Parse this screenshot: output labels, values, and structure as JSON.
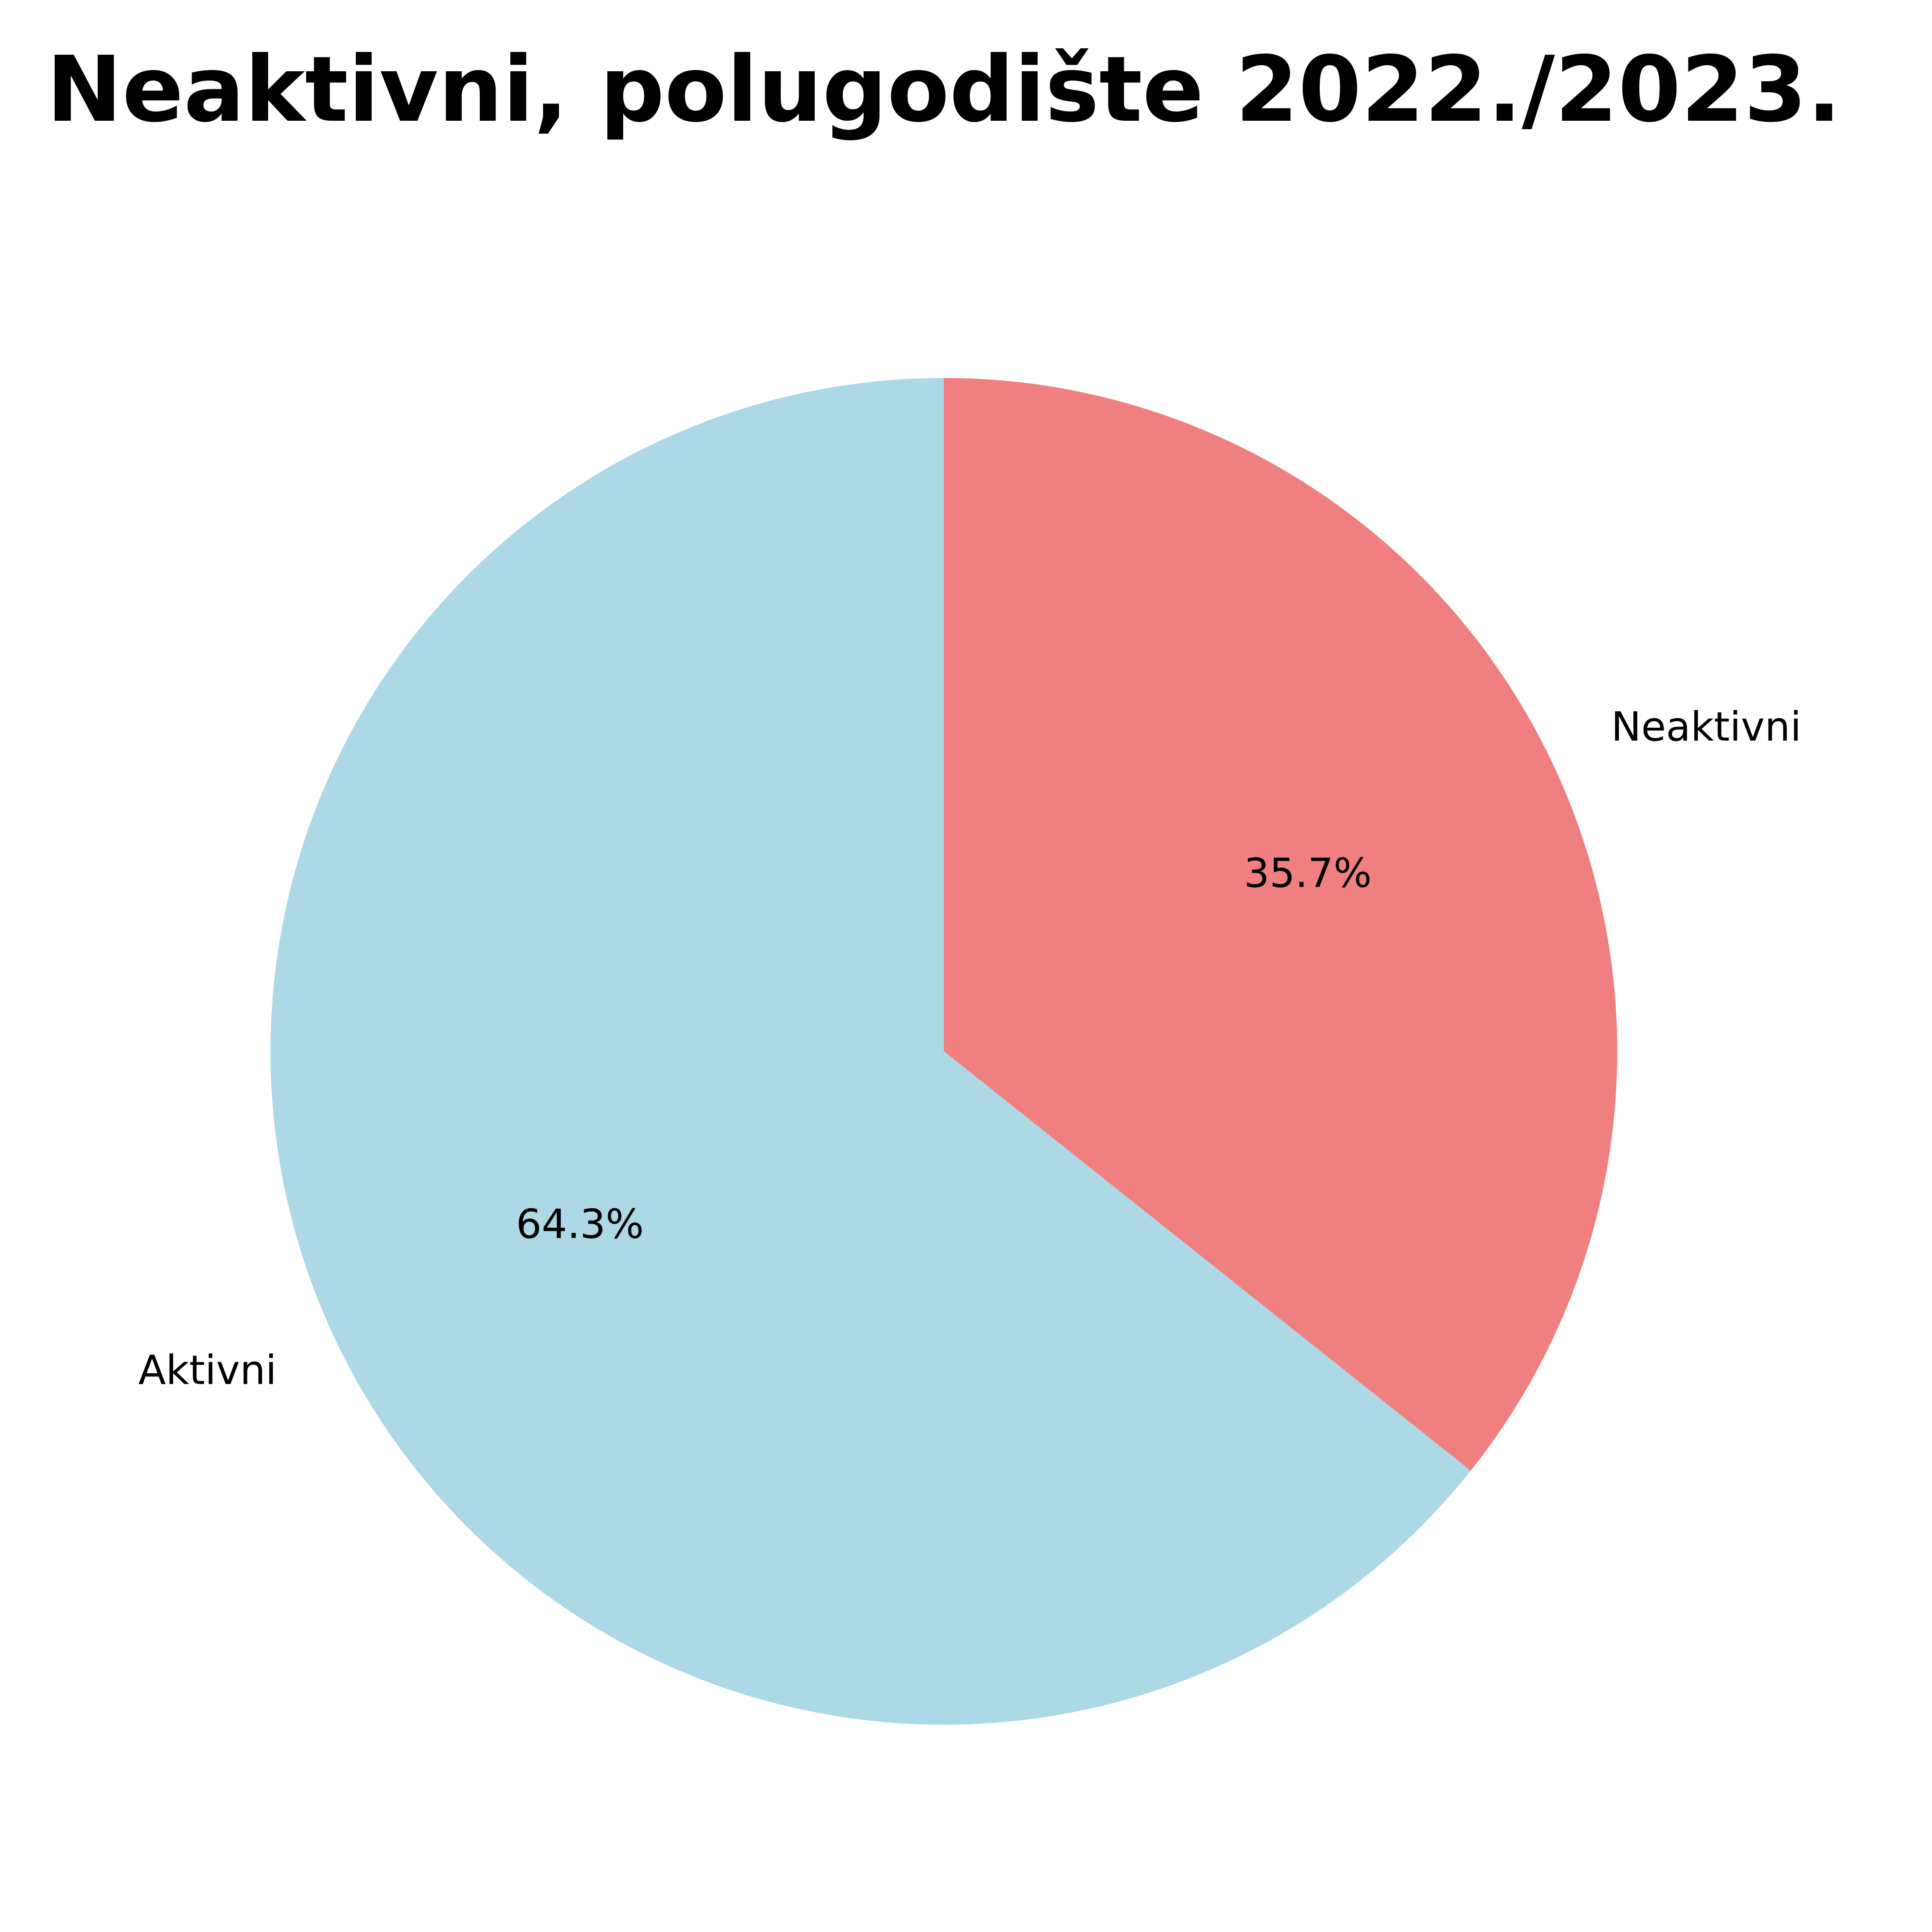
{
  "chart_data": {
    "type": "pie",
    "title": "Neaktivni, polugodište 2022./2023.",
    "categories": [
      "Neaktivni",
      "Aktivni"
    ],
    "values": [
      35.7,
      64.3
    ],
    "value_labels": [
      "35.7%",
      "64.3%"
    ],
    "colors": [
      "#f08080",
      "#add8e6"
    ],
    "start_angle_deg": 90,
    "direction": "clockwise",
    "legend": "none"
  }
}
